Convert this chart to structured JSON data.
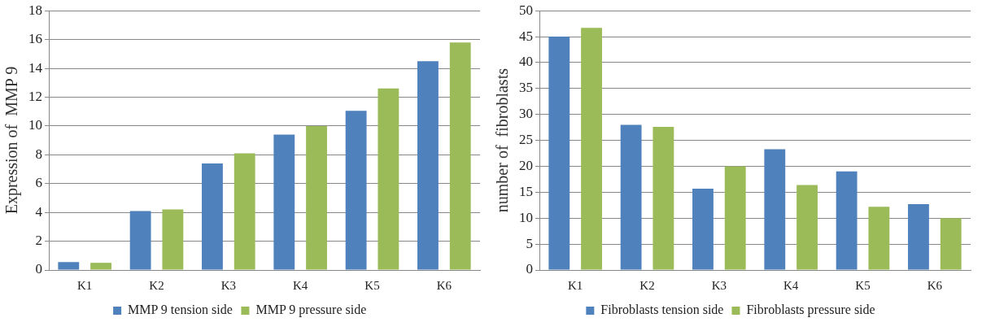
{
  "chart_data": [
    {
      "type": "bar",
      "ylabel": "Expression of  MMP 9",
      "categories": [
        "K1",
        "K2",
        "K3",
        "K4",
        "K5",
        "K6"
      ],
      "series": [
        {
          "name": "MMP 9 tension side",
          "color": "#4f81bd",
          "values": [
            0.55,
            4.1,
            7.4,
            9.4,
            11.05,
            14.5
          ]
        },
        {
          "name": "MMP 9 pressure side",
          "color": "#9bbb59",
          "values": [
            0.5,
            4.2,
            8.1,
            10,
            12.6,
            15.8
          ]
        }
      ],
      "ylim": [
        0,
        18
      ],
      "yticks": [
        0,
        2,
        4,
        6,
        8,
        10,
        12,
        14,
        16,
        18
      ],
      "grid": "y",
      "legend": "bottom"
    },
    {
      "type": "bar",
      "ylabel": "number of  fibroblasts",
      "categories": [
        "K1",
        "K2",
        "K3",
        "K4",
        "K5",
        "K6"
      ],
      "series": [
        {
          "name": "Fibroblasts tension side",
          "color": "#4f81bd",
          "values": [
            45,
            28,
            15.7,
            23.3,
            19,
            12.7
          ]
        },
        {
          "name": "Fibroblasts pressure side",
          "color": "#9bbb59",
          "values": [
            46.7,
            27.6,
            20,
            16.4,
            12.2,
            10
          ]
        }
      ],
      "ylim": [
        0,
        50
      ],
      "yticks": [
        0,
        5,
        10,
        15,
        20,
        25,
        30,
        35,
        40,
        45,
        50
      ],
      "grid": "y",
      "legend": "bottom"
    }
  ]
}
